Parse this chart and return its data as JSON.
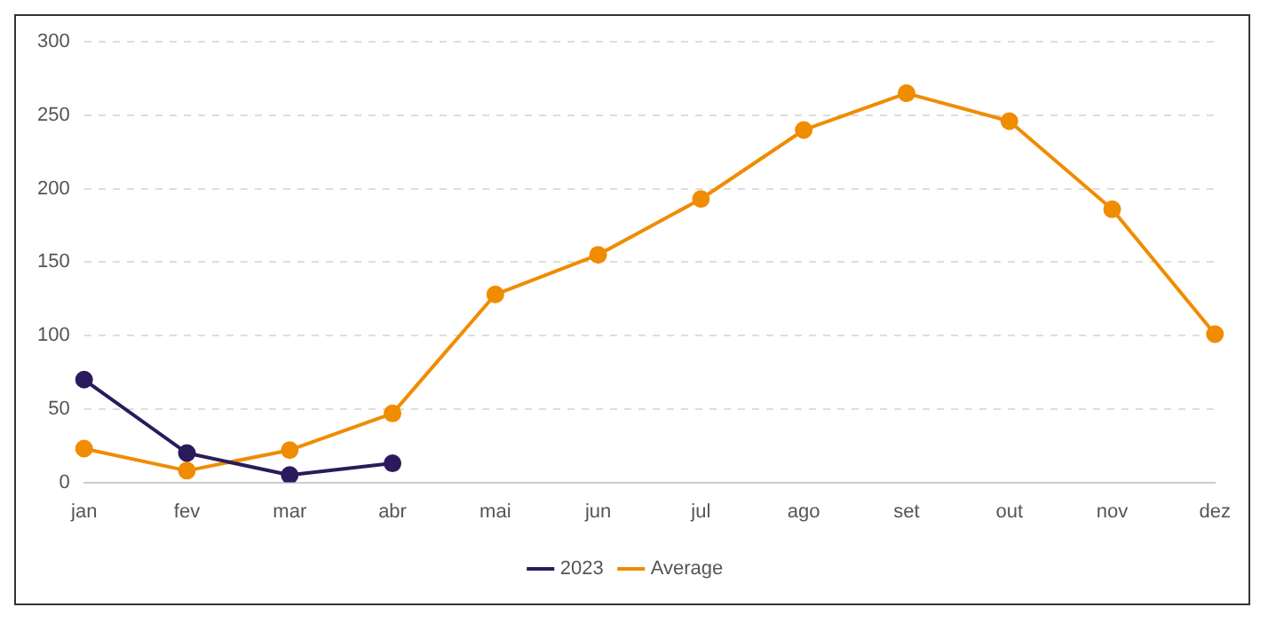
{
  "chart_data": {
    "type": "line",
    "categories": [
      "jan",
      "fev",
      "mar",
      "abr",
      "mai",
      "jun",
      "jul",
      "ago",
      "set",
      "out",
      "nov",
      "dez"
    ],
    "series": [
      {
        "name": "2023",
        "color": "#2b1b5c",
        "values": [
          70,
          20,
          5,
          13,
          null,
          null,
          null,
          null,
          null,
          null,
          null,
          null
        ]
      },
      {
        "name": "Average",
        "color": "#f08c00",
        "values": [
          23,
          8,
          22,
          47,
          128,
          155,
          193,
          240,
          265,
          246,
          186,
          101
        ]
      }
    ],
    "ylim": [
      0,
      300
    ],
    "yticks": [
      0,
      50,
      100,
      150,
      200,
      250,
      300
    ],
    "grid": "y",
    "legend": "bottom",
    "marker": "circle",
    "line_style": "solid"
  }
}
